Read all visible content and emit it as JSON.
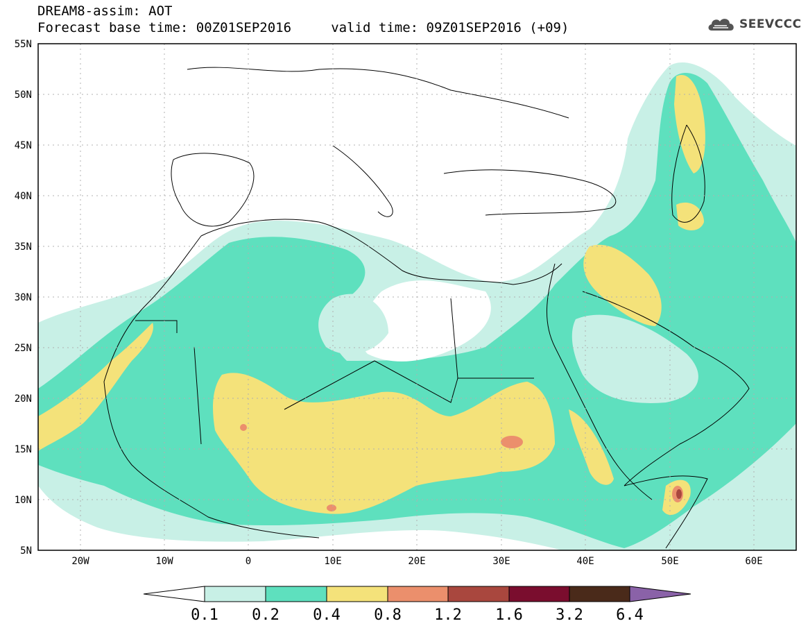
{
  "title": {
    "line1": "DREAM8-assim: AOT",
    "line2": "Forecast base time: 00Z01SEP2016     valid time: 09Z01SEP2016 (+09)"
  },
  "logo": {
    "text": "SEEVCCC",
    "icon": "cloud-icon"
  },
  "axes": {
    "lat_ticks": [
      "55N",
      "50N",
      "45N",
      "40N",
      "35N",
      "30N",
      "25N",
      "20N",
      "15N",
      "10N",
      "5N"
    ],
    "lon_ticks": [
      "20W",
      "10W",
      "0",
      "10E",
      "20E",
      "30E",
      "40E",
      "50E",
      "60E"
    ]
  },
  "colorbar": {
    "labels": [
      "0.1",
      "0.2",
      "0.4",
      "0.8",
      "1.2",
      "1.6",
      "3.2",
      "6.4"
    ],
    "colors": [
      "#ffffff",
      "#c8f0e6",
      "#5ee0be",
      "#f4e27a",
      "#eb8f6c",
      "#a9473e",
      "#7a0d2e",
      "#4a2a1a",
      "#8a62a8"
    ]
  },
  "palette": {
    "c1": "#c8f0e6",
    "c2": "#5ee0be",
    "c3": "#f4e27a",
    "c4": "#eb8f6c",
    "c5": "#a9473e"
  }
}
